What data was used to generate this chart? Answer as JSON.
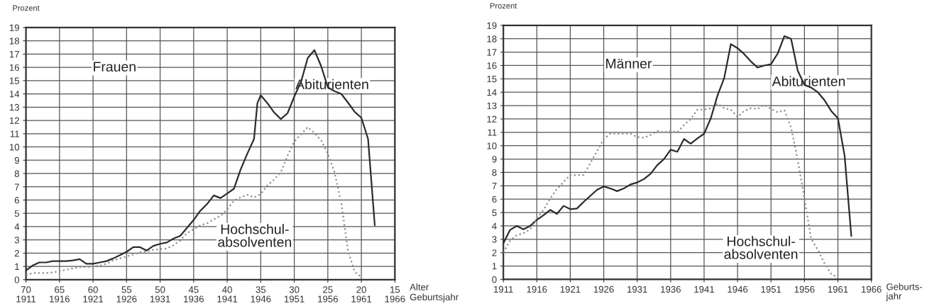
{
  "chart_data": [
    {
      "type": "line",
      "title": "Frauen",
      "ylabel": "Prozent",
      "xlabel": "Geburtsjahr",
      "x2label": "Alter",
      "x": [
        1911,
        1912,
        1913,
        1914,
        1915,
        1916,
        1917,
        1918,
        1919,
        1920,
        1921,
        1922,
        1923,
        1924,
        1925,
        1926,
        1927,
        1928,
        1929,
        1930,
        1931,
        1932,
        1933,
        1934,
        1935,
        1936,
        1937,
        1938,
        1939,
        1940,
        1941,
        1942,
        1943,
        1944,
        1945,
        1946,
        1947,
        1948,
        1949,
        1950,
        1951,
        1952,
        1953,
        1954,
        1955,
        1956,
        1957,
        1958,
        1959,
        1960,
        1961
      ],
      "series": [
        {
          "name": "Abiturienten",
          "color": "#2b2b2b",
          "line_style": "solid",
          "x": [
            1911,
            1912,
            1913,
            1914,
            1915,
            1916,
            1917,
            1918,
            1919,
            1920,
            1921,
            1922,
            1923,
            1924,
            1925,
            1926,
            1927,
            1928,
            1929,
            1930,
            1931,
            1932,
            1933,
            1934,
            1935,
            1936,
            1937,
            1938,
            1939,
            1940,
            1941,
            1942,
            1943,
            1944,
            1945,
            1945.5,
            1946,
            1947,
            1948,
            1949,
            1950,
            1951,
            1952,
            1953,
            1954,
            1955,
            1956,
            1957,
            1958,
            1959,
            1960,
            1961,
            1962,
            1963
          ],
          "values": [
            0.7,
            1.07,
            1.3,
            1.3,
            1.4,
            1.4,
            1.4,
            1.45,
            1.55,
            1.2,
            1.2,
            1.3,
            1.4,
            1.6,
            1.85,
            2.1,
            2.45,
            2.45,
            2.2,
            2.55,
            2.7,
            2.8,
            3.1,
            3.3,
            3.9,
            4.5,
            5.2,
            5.7,
            6.35,
            6.15,
            6.5,
            6.85,
            8.3,
            9.5,
            10.6,
            13.3,
            13.9,
            13.3,
            12.6,
            12.1,
            12.55,
            13.8,
            14.9,
            16.7,
            17.3,
            16.1,
            14.5,
            14.2,
            14.0,
            13.35,
            12.65,
            12.2,
            10.6,
            4.1
          ]
        },
        {
          "name": "Hochschul-\nabsolventen",
          "color": "#8c8c8c",
          "line_style": "dotted",
          "values": [
            0.35,
            0.5,
            0.5,
            0.5,
            0.55,
            0.65,
            0.75,
            0.85,
            0.95,
            0.95,
            1.0,
            1.05,
            1.2,
            1.45,
            1.6,
            1.75,
            1.9,
            2.05,
            2.15,
            2.25,
            2.3,
            2.35,
            2.6,
            2.95,
            3.5,
            3.8,
            4.1,
            4.25,
            4.55,
            4.8,
            5.3,
            5.95,
            6.2,
            6.4,
            6.2,
            6.45,
            7.1,
            7.55,
            8.1,
            9.35,
            10.4,
            10.95,
            11.5,
            11.05,
            10.5,
            9.5,
            8.1,
            5.8,
            2.2,
            0.6,
            0.2
          ]
        }
      ],
      "xlim": [
        1911,
        1966
      ],
      "xticks": [
        1911,
        1916,
        1921,
        1926,
        1931,
        1936,
        1941,
        1946,
        1951,
        1956,
        1961,
        1966
      ],
      "x2lim": [
        70,
        15
      ],
      "x2ticks": [
        70,
        65,
        60,
        55,
        50,
        45,
        40,
        35,
        30,
        25,
        20,
        15
      ],
      "ylim": [
        0,
        19
      ],
      "yticks": [
        0,
        1,
        2,
        3,
        4,
        5,
        6,
        7,
        8,
        9,
        10,
        11,
        12,
        13,
        14,
        15,
        16,
        17,
        18,
        19
      ],
      "grid": true,
      "legend": false
    },
    {
      "type": "line",
      "title": "Männer",
      "ylabel": "Prozent",
      "xlabel": "Geburts-\njahr",
      "x": [
        1911,
        1912,
        1913,
        1914,
        1915,
        1916,
        1917,
        1918,
        1919,
        1920,
        1921,
        1922,
        1923,
        1924,
        1925,
        1926,
        1927,
        1928,
        1929,
        1930,
        1931,
        1932,
        1933,
        1934,
        1935,
        1936,
        1937,
        1938,
        1939,
        1940,
        1941,
        1942,
        1943,
        1944,
        1945,
        1946,
        1947,
        1948,
        1949,
        1950,
        1951,
        1952,
        1953,
        1954,
        1955,
        1956,
        1957,
        1958,
        1959,
        1960,
        1961,
        1962,
        1963
      ],
      "series": [
        {
          "name": "Abiturienten",
          "color": "#2b2b2b",
          "line_style": "solid",
          "values": [
            2.7,
            3.7,
            4.0,
            3.75,
            4.0,
            4.45,
            4.8,
            5.2,
            4.9,
            5.5,
            5.25,
            5.3,
            5.8,
            6.25,
            6.7,
            6.95,
            6.8,
            6.6,
            6.8,
            7.1,
            7.25,
            7.5,
            7.9,
            8.55,
            9.0,
            9.7,
            9.55,
            10.5,
            10.15,
            10.55,
            10.9,
            12.05,
            13.75,
            15.05,
            17.6,
            17.3,
            16.85,
            16.3,
            15.85,
            16.0,
            16.1,
            16.9,
            18.2,
            18.0,
            15.6,
            14.55,
            14.35,
            14.0,
            13.4,
            12.6,
            12.05,
            9.25,
            3.25
          ]
        },
        {
          "name": "Hochschul-\nabsolventen",
          "color": "#8c8c8c",
          "line_style": "dotted",
          "values": [
            2.0,
            2.9,
            3.3,
            3.45,
            3.75,
            4.55,
            5.2,
            6.05,
            6.75,
            7.3,
            7.8,
            7.8,
            7.8,
            8.7,
            9.6,
            10.5,
            10.9,
            10.9,
            10.9,
            10.9,
            10.65,
            10.6,
            10.8,
            11.1,
            11.0,
            11.1,
            11.0,
            11.55,
            12.0,
            12.7,
            12.7,
            12.8,
            13.15,
            12.8,
            12.7,
            12.15,
            12.6,
            12.8,
            12.75,
            13.05,
            12.75,
            12.5,
            12.65,
            11.35,
            8.9,
            6.05,
            3.05,
            2.2,
            1.2,
            0.4,
            0.15,
            null,
            null
          ]
        }
      ],
      "xlim": [
        1911,
        1966
      ],
      "xticks": [
        1911,
        1916,
        1921,
        1926,
        1931,
        1936,
        1941,
        1946,
        1951,
        1956,
        1961,
        1966
      ],
      "ylim": [
        0,
        19
      ],
      "yticks": [
        0,
        1,
        2,
        3,
        4,
        5,
        6,
        7,
        8,
        9,
        10,
        11,
        12,
        13,
        14,
        15,
        16,
        17,
        18,
        19
      ],
      "grid": true,
      "legend": false
    }
  ]
}
